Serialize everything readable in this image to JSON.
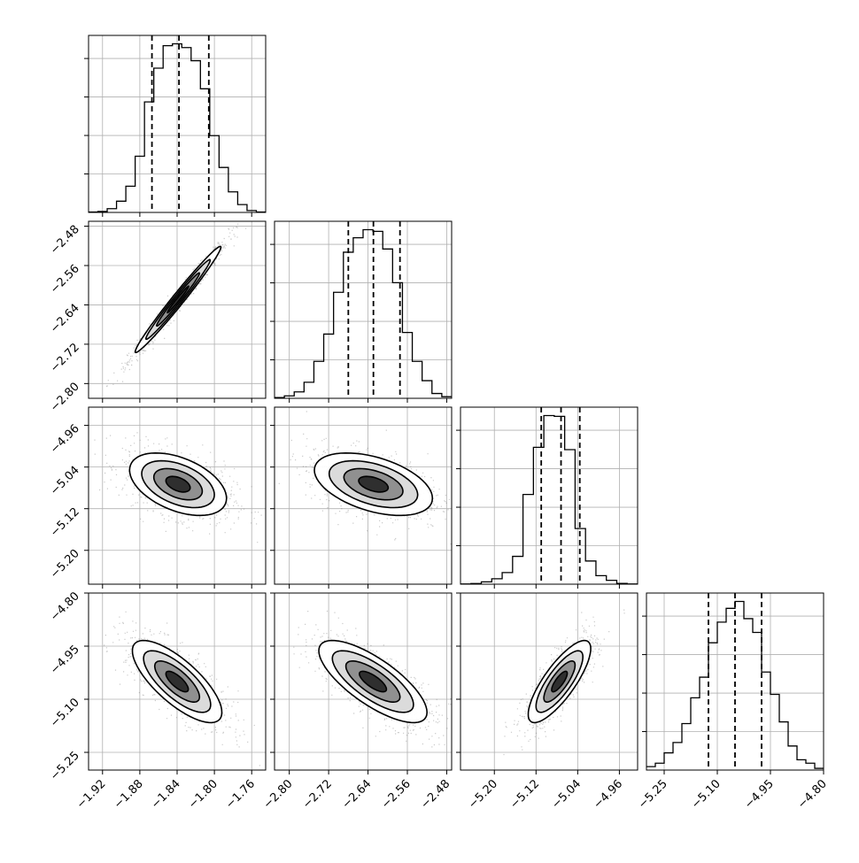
{
  "chart_data": {
    "type": "corner",
    "parameters": 4,
    "grid": true,
    "colors": {
      "line": "#000000",
      "grid": "#b0b0b0",
      "points": "#666666"
    },
    "diagonal": [
      {
        "param": 0,
        "range": [
          -1.935,
          -1.745
        ],
        "ticks": [
          "−1.92",
          "−1.88",
          "−1.84",
          "−1.80",
          "−1.76"
        ],
        "tick_values": [
          -1.92,
          -1.88,
          -1.84,
          -1.8,
          -1.76
        ],
        "bin_edges": [
          -1.935,
          -1.925,
          -1.915,
          -1.905,
          -1.895,
          -1.885,
          -1.875,
          -1.865,
          -1.855,
          -1.845,
          -1.835,
          -1.825,
          -1.815,
          -1.805,
          -1.795,
          -1.785,
          -1.775,
          -1.765,
          -1.755,
          -1.745
        ],
        "counts": [
          2,
          5,
          20,
          60,
          140,
          300,
          590,
          770,
          890,
          900,
          880,
          810,
          660,
          410,
          240,
          110,
          42,
          10,
          2
        ],
        "quantiles": [
          -1.867,
          -1.838,
          -1.806
        ]
      },
      {
        "param": 1,
        "range": [
          -2.83,
          -2.47
        ],
        "ticks": [
          "−2.80",
          "−2.72",
          "−2.64",
          "−2.56",
          "−2.48"
        ],
        "tick_values": [
          -2.8,
          -2.72,
          -2.64,
          -2.56,
          -2.48
        ],
        "bin_edges": [
          -2.83,
          -2.81,
          -2.79,
          -2.77,
          -2.75,
          -2.73,
          -2.71,
          -2.69,
          -2.67,
          -2.65,
          -2.63,
          -2.61,
          -2.59,
          -2.57,
          -2.55,
          -2.53,
          -2.51,
          -2.49,
          -2.47
        ],
        "counts": [
          5,
          15,
          40,
          100,
          230,
          400,
          660,
          910,
          1000,
          1050,
          1040,
          930,
          720,
          410,
          230,
          110,
          30,
          10
        ],
        "quantiles": [
          -2.68,
          -2.629,
          -2.575
        ]
      },
      {
        "param": 2,
        "range": [
          -5.265,
          -4.925
        ],
        "ticks": [
          "−5.20",
          "−5.12",
          "−5.04",
          "−4.96"
        ],
        "tick_values": [
          -5.2,
          -5.12,
          -5.04,
          -4.96
        ],
        "bin_edges": [
          -5.265,
          -5.245,
          -5.225,
          -5.205,
          -5.185,
          -5.165,
          -5.145,
          -5.125,
          -5.105,
          -5.085,
          -5.065,
          -5.045,
          -5.025,
          -5.005,
          -4.985,
          -4.965,
          -4.945,
          -4.925
        ],
        "counts": [
          2,
          8,
          30,
          70,
          150,
          360,
          1160,
          1770,
          2180,
          2170,
          1740,
          720,
          300,
          110,
          50,
          10,
          3
        ],
        "quantiles": [
          -5.11,
          -5.072,
          -5.036
        ]
      },
      {
        "param": 3,
        "range": [
          -5.3,
          -4.8
        ],
        "ticks": [
          "−5.25",
          "−5.10",
          "−4.95",
          "−4.80"
        ],
        "tick_values": [
          -5.25,
          -5.1,
          -4.95,
          -4.8
        ],
        "bin_edges": [
          -5.3,
          -5.275,
          -5.25,
          -5.225,
          -5.2,
          -5.175,
          -5.15,
          -5.125,
          -5.1,
          -5.075,
          -5.05,
          -5.025,
          -5.0,
          -4.975,
          -4.95,
          -4.925,
          -4.9,
          -4.875,
          -4.85,
          -4.825,
          -4.8
        ],
        "counts": [
          20,
          40,
          100,
          160,
          270,
          420,
          540,
          740,
          860,
          940,
          980,
          880,
          800,
          570,
          440,
          280,
          140,
          60,
          40,
          10
        ],
        "quantiles": [
          -5.125,
          -5.05,
          -4.975
        ]
      }
    ],
    "pairs": [
      {
        "row": 1,
        "col": 0,
        "center": [
          -1.839,
          -2.629
        ],
        "sd": [
          0.023,
          0.054
        ],
        "rho": 0.985
      },
      {
        "row": 2,
        "col": 0,
        "center": [
          -1.839,
          -5.073
        ],
        "sd": [
          0.026,
          0.03
        ],
        "rho": -0.45
      },
      {
        "row": 2,
        "col": 1,
        "center": [
          -2.629,
          -5.073
        ],
        "sd": [
          0.06,
          0.03
        ],
        "rho": -0.45
      },
      {
        "row": 3,
        "col": 0,
        "center": [
          -1.84,
          -5.05
        ],
        "sd": [
          0.024,
          0.058
        ],
        "rho": -0.75
      },
      {
        "row": 3,
        "col": 1,
        "center": [
          -2.63,
          -5.05
        ],
        "sd": [
          0.055,
          0.058
        ],
        "rho": -0.75
      },
      {
        "row": 3,
        "col": 2,
        "center": [
          -5.075,
          -5.05
        ],
        "sd": [
          0.03,
          0.058
        ],
        "rho": 0.8
      }
    ],
    "contour_levels": [
      0.5,
      1.0,
      1.5,
      2.0
    ],
    "y_ticks": {
      "1": [
        "−2.80",
        "−2.72",
        "−2.64",
        "−2.56",
        "−2.48"
      ],
      "2": [
        "−5.20",
        "−5.12",
        "−5.04",
        "−4.96"
      ],
      "3": [
        "−5.25",
        "−5.10",
        "−4.95",
        "−4.80"
      ]
    }
  }
}
